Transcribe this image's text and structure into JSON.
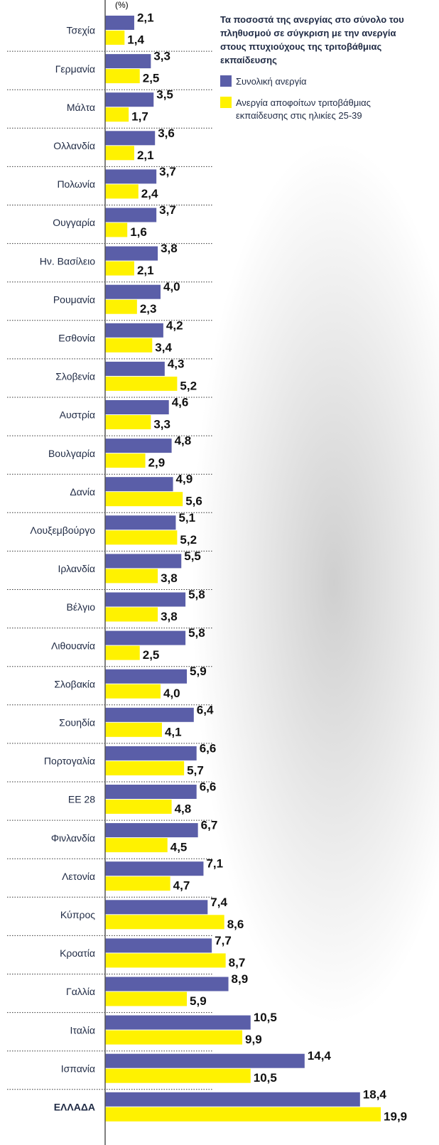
{
  "chart_data": {
    "type": "bar",
    "orientation": "horizontal",
    "title": "Τα ποσοστά της ανεργίας στο σύνολο του πληθυσμού σε σύγκριση με την ανεργία στους πτυχιούχους της τριτοβάθμιας εκπαίδευσης",
    "unit_label": "(%)",
    "categories": [
      "Τσεχία",
      "Γερμανία",
      "Μάλτα",
      "Ολλανδία",
      "Πολωνία",
      "Ουγγαρία",
      "Ην. Βασίλειο",
      "Ρουμανία",
      "Εσθονία",
      "Σλοβενία",
      "Αυστρία",
      "Βουλγαρία",
      "Δανία",
      "Λουξεμβούργο",
      "Ιρλανδία",
      "Βέλγιο",
      "Λιθουανία",
      "Σλοβακία",
      "Σουηδία",
      "Πορτογαλία",
      "ΕΕ 28",
      "Φινλανδία",
      "Λετονία",
      "Κύπρος",
      "Κροατία",
      "Γαλλία",
      "Ιταλία",
      "Ισπανία",
      "ΕΛΛΑΔΑ"
    ],
    "series": [
      {
        "name": "Συνολική ανεργία",
        "color": "#5a5ea8",
        "values": [
          2.1,
          3.3,
          3.5,
          3.6,
          3.7,
          3.7,
          3.8,
          4.0,
          4.2,
          4.3,
          4.6,
          4.8,
          4.9,
          5.1,
          5.5,
          5.8,
          5.8,
          5.9,
          6.4,
          6.6,
          6.6,
          6.7,
          7.1,
          7.4,
          7.7,
          8.9,
          10.5,
          14.4,
          18.4
        ],
        "value_labels": [
          "2,1",
          "3,3",
          "3,5",
          "3,6",
          "3,7",
          "3,7",
          "3,8",
          "4,0",
          "4,2",
          "4,3",
          "4,6",
          "4,8",
          "4,9",
          "5,1",
          "5,5",
          "5,8",
          "5,8",
          "5,9",
          "6,4",
          "6,6",
          "6,6",
          "6,7",
          "7,1",
          "7,4",
          "7,7",
          "8,9",
          "10,5",
          "14,4",
          "18,4"
        ]
      },
      {
        "name": "Ανεργία αποφοίτων τριτοβάθμιας εκπαίδευσης στις ηλικίες 25-39",
        "color": "#fff200",
        "values": [
          1.4,
          2.5,
          1.7,
          2.1,
          2.4,
          1.6,
          2.1,
          2.3,
          3.4,
          5.2,
          3.3,
          2.9,
          5.6,
          5.2,
          3.8,
          3.8,
          2.5,
          4.0,
          4.1,
          5.7,
          4.8,
          4.5,
          4.7,
          8.6,
          8.7,
          5.9,
          9.9,
          10.5,
          19.9
        ],
        "value_labels": [
          "1,4",
          "2,5",
          "1,7",
          "2,1",
          "2,4",
          "1,6",
          "2,1",
          "2,3",
          "3,4",
          "5,2",
          "3,3",
          "2,9",
          "5,6",
          "5,2",
          "3,8",
          "3,8",
          "2,5",
          "4,0",
          "4,1",
          "5,7",
          "4,8",
          "4,5",
          "4,7",
          "8,6",
          "8,7",
          "5,9",
          "9,9",
          "10,5",
          "19,9"
        ]
      }
    ],
    "xlim": [
      0,
      24
    ]
  }
}
